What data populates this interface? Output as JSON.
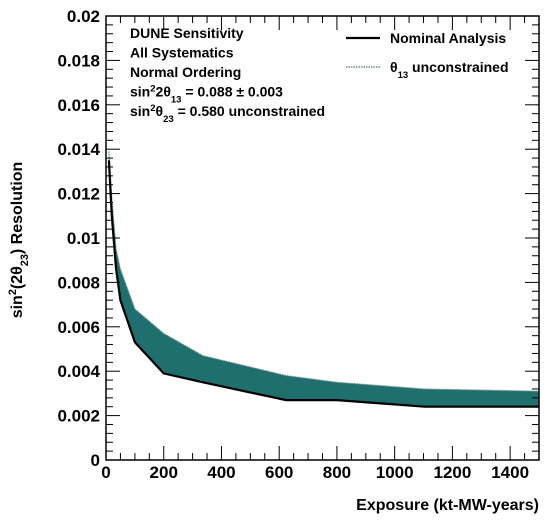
{
  "chart_data": {
    "type": "area",
    "xlabel": "Exposure (kt-MW-years)",
    "ylabel": {
      "parts": [
        {
          "t": "sin"
        },
        {
          "t": "2",
          "sup": true
        },
        {
          "t": "(2θ"
        },
        {
          "t": "23",
          "sub": true
        },
        {
          "t": ") Resolution"
        }
      ]
    },
    "xlim": [
      0,
      1500
    ],
    "ylim": [
      0,
      0.02
    ],
    "xticks": [
      0,
      200,
      400,
      600,
      800,
      1000,
      1200,
      1400
    ],
    "yticks": [
      0,
      0.002,
      0.004,
      0.006,
      0.008,
      0.01,
      0.012,
      0.014,
      0.016,
      0.018,
      0.02
    ],
    "ytick_labels": [
      "0",
      "0.002",
      "0.004",
      "0.006",
      "0.008",
      "0.01",
      "0.012",
      "0.014",
      "0.016",
      "0.018",
      "0.02"
    ],
    "annotations": [
      {
        "parts": [
          {
            "t": "DUNE Sensitivity"
          }
        ]
      },
      {
        "parts": [
          {
            "t": "All Systematics"
          }
        ]
      },
      {
        "parts": [
          {
            "t": "Normal Ordering"
          }
        ]
      },
      {
        "parts": [
          {
            "t": "sin"
          },
          {
            "t": "2",
            "sup": true
          },
          {
            "t": "2θ"
          },
          {
            "t": "13",
            "sub": true
          },
          {
            "t": " = 0.088 ± 0.003"
          }
        ]
      },
      {
        "parts": [
          {
            "t": "sin"
          },
          {
            "t": "2",
            "sup": true
          },
          {
            "t": "θ"
          },
          {
            "t": "23",
            "sub": true
          },
          {
            "t": " = 0.580 unconstrained"
          }
        ]
      }
    ],
    "legend_position": "top-right",
    "series": [
      {
        "name": "Nominal Analysis",
        "color": "#000000",
        "x": [
          10,
          20,
          35,
          50,
          100,
          200,
          336,
          624,
          800,
          1104,
          1500
        ],
        "y": [
          0.0135,
          0.011,
          0.0086,
          0.0072,
          0.0053,
          0.0039,
          0.0035,
          0.0027,
          0.0027,
          0.0024,
          0.0024
        ]
      },
      {
        "name": "θ13 unconstrained",
        "legend_parts": [
          {
            "t": "θ"
          },
          {
            "t": "13",
            "sub": true
          },
          {
            "t": " unconstrained"
          }
        ],
        "color": "#1f6f6f",
        "x": [
          10,
          20,
          35,
          50,
          100,
          200,
          336,
          624,
          800,
          1104,
          1500
        ],
        "y": [
          0.0139,
          0.0118,
          0.0095,
          0.0086,
          0.0068,
          0.0057,
          0.0047,
          0.0038,
          0.0035,
          0.0032,
          0.0031
        ]
      }
    ]
  }
}
